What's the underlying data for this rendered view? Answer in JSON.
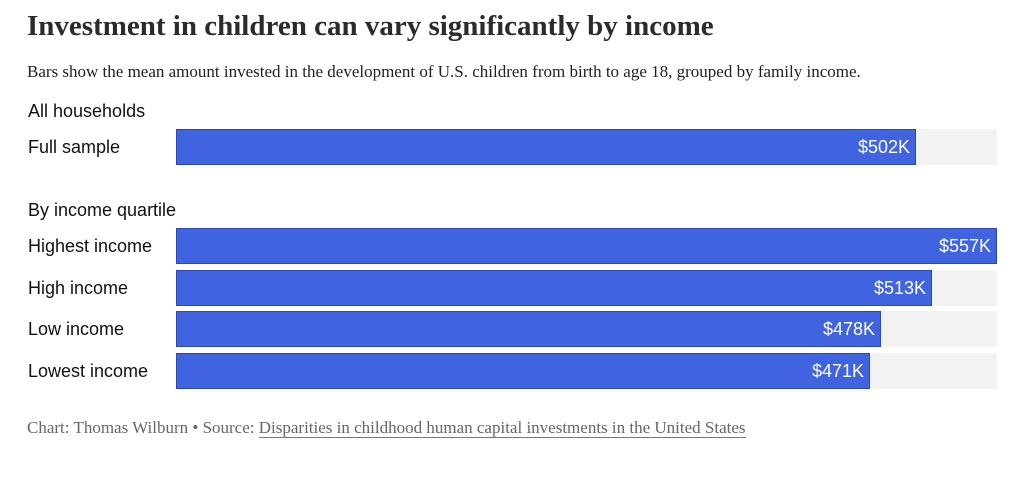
{
  "title": "Investment in children can vary significantly by income",
  "subtitle": "Bars show the mean amount invested in the development of U.S. children from birth to age 18, grouped by family income.",
  "credit": {
    "prefix": "Chart: Thomas Wilburn • Source: ",
    "link_text": "Disparities in childhood human capital investments in the United States",
    "link_color": "#2e9e6a"
  },
  "colors": {
    "bar": "#4063e0",
    "track": "#f2f2f2"
  },
  "chart_data": {
    "type": "bar",
    "orientation": "horizontal",
    "title": "Investment in children can vary significantly by income",
    "subtitle": "Bars show the mean amount invested in the development of U.S. children from birth to age 18, grouped by family income.",
    "xlim": [
      0,
      557
    ],
    "unit": "thousand USD",
    "groups": [
      {
        "label": "All households",
        "rows": [
          {
            "label": "Full sample",
            "value": 502,
            "value_label": "$502K"
          }
        ]
      },
      {
        "label": "By income quartile",
        "rows": [
          {
            "label": "Highest income",
            "value": 557,
            "value_label": "$557K"
          },
          {
            "label": "High income",
            "value": 513,
            "value_label": "$513K"
          },
          {
            "label": "Low income",
            "value": 478,
            "value_label": "$478K"
          },
          {
            "label": "Lowest income",
            "value": 471,
            "value_label": "$471K"
          }
        ]
      }
    ]
  }
}
